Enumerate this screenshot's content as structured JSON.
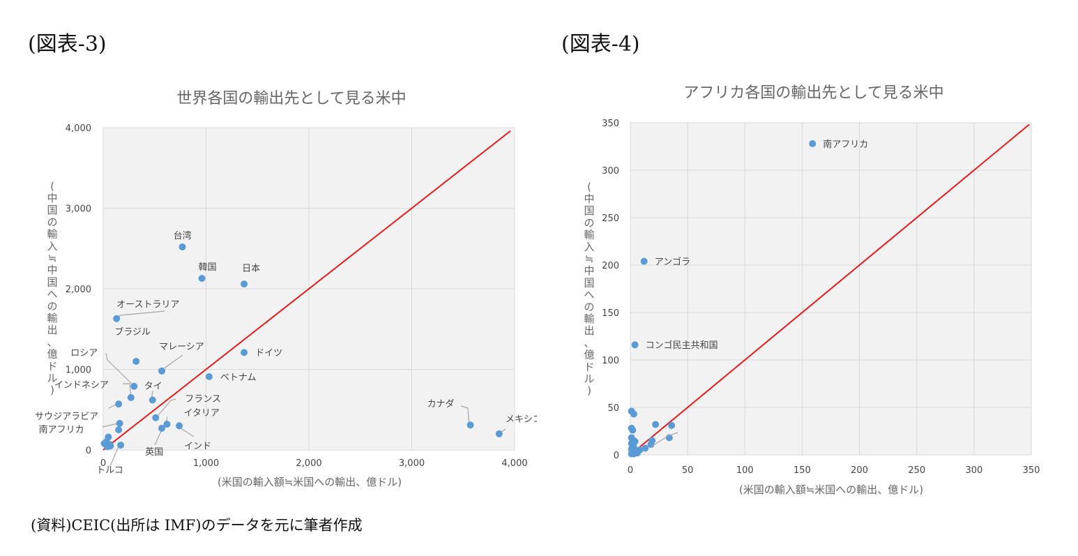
{
  "fig3_label": "(図表-3)",
  "fig4_label": "(図表-4)",
  "source": "(資料)CEIC(出所は IMF)のデータを元に筆者作成",
  "chart_data": [
    {
      "type": "scatter",
      "title": "世界各国の輸出先として見る米中",
      "xlabel": "(米国の輸入額≒米国への輸出、億ドル)",
      "ylabel": "(中国の輸入≒中国への輸出、億ドル)",
      "xlim": [
        0,
        4000
      ],
      "ylim": [
        0,
        4000
      ],
      "xticks": [
        0,
        1000,
        2000,
        3000,
        4000
      ],
      "yticks": [
        0,
        1000,
        2000,
        3000,
        4000
      ],
      "xtick_labels": [
        "0",
        "1,000",
        "2,000",
        "3,000",
        "4,000"
      ],
      "ytick_labels": [
        "0",
        "1,000",
        "2,000",
        "3,000",
        "4,000"
      ],
      "grid": true,
      "reference_line": "y=x",
      "point_color": "#5b9bd5",
      "line_color": "#e41a1c",
      "points": [
        {
          "label": "台湾",
          "x": 770,
          "y": 2520
        },
        {
          "label": "韓国",
          "x": 960,
          "y": 2130
        },
        {
          "label": "日本",
          "x": 1370,
          "y": 2060
        },
        {
          "label": "オーストラリア",
          "x": 130,
          "y": 1630
        },
        {
          "label": "ドイツ",
          "x": 1370,
          "y": 1210
        },
        {
          "label": "ブラジル",
          "x": 320,
          "y": 1100
        },
        {
          "label": "マレーシア",
          "x": 570,
          "y": 980
        },
        {
          "label": "ベトナム",
          "x": 1030,
          "y": 910
        },
        {
          "label": "ロシア",
          "x": 300,
          "y": 790
        },
        {
          "label": "インドネシア",
          "x": 270,
          "y": 650
        },
        {
          "label": "タイ",
          "x": 480,
          "y": 620
        },
        {
          "label": "サウジアラビア",
          "x": 150,
          "y": 570
        },
        {
          "label": "フランス",
          "x": 510,
          "y": 400
        },
        {
          "label": "イタリア",
          "x": 620,
          "y": 320
        },
        {
          "label": "メキシコ",
          "x": 3850,
          "y": 200
        },
        {
          "label": "カナダ",
          "x": 3570,
          "y": 310
        },
        {
          "label": "南アフリカ",
          "x": 160,
          "y": 330
        },
        {
          "label": "英国",
          "x": 570,
          "y": 270
        },
        {
          "label": "インド",
          "x": 740,
          "y": 300
        },
        {
          "label": "トルコ",
          "x": 170,
          "y": 60
        },
        {
          "label": "",
          "x": 150,
          "y": 250
        },
        {
          "label": "",
          "x": 50,
          "y": 160
        },
        {
          "label": "",
          "x": 30,
          "y": 100
        },
        {
          "label": "",
          "x": 60,
          "y": 70
        },
        {
          "label": "",
          "x": 10,
          "y": 80
        },
        {
          "label": "",
          "x": 40,
          "y": 40
        },
        {
          "label": "",
          "x": 70,
          "y": 50
        }
      ]
    },
    {
      "type": "scatter",
      "title": "アフリカ各国の輸出先として見る米中",
      "xlabel": "(米国の輸入額≒米国への輸出、億ドル)",
      "ylabel": "(中国の輸入≒中国への輸出、億ドル)",
      "xlim": [
        0,
        350
      ],
      "ylim": [
        0,
        350
      ],
      "xticks": [
        0,
        50,
        100,
        150,
        200,
        250,
        300,
        350
      ],
      "yticks": [
        0,
        50,
        100,
        150,
        200,
        250,
        300,
        350
      ],
      "xtick_labels": [
        "0",
        "50",
        "100",
        "150",
        "200",
        "250",
        "300",
        "350"
      ],
      "ytick_labels": [
        "0",
        "50",
        "100",
        "150",
        "200",
        "250",
        "300",
        "350"
      ],
      "grid": true,
      "reference_line": "y=x",
      "point_color": "#5b9bd5",
      "line_color": "#e41a1c",
      "points": [
        {
          "label": "南アフリカ",
          "x": 159,
          "y": 328
        },
        {
          "label": "アンゴラ",
          "x": 12,
          "y": 204
        },
        {
          "label": "コンゴ民主共和国",
          "x": 4,
          "y": 116
        },
        {
          "label": "",
          "x": 1,
          "y": 46
        },
        {
          "label": "",
          "x": 3,
          "y": 43
        },
        {
          "label": "",
          "x": 1,
          "y": 28
        },
        {
          "label": "",
          "x": 2,
          "y": 26
        },
        {
          "label": "",
          "x": 22,
          "y": 32
        },
        {
          "label": "",
          "x": 36,
          "y": 31
        },
        {
          "label": "",
          "x": 34,
          "y": 18
        },
        {
          "label": "",
          "x": 1,
          "y": 18
        },
        {
          "label": "",
          "x": 3,
          "y": 15
        },
        {
          "label": "",
          "x": 19,
          "y": 15
        },
        {
          "label": "",
          "x": 18,
          "y": 11
        },
        {
          "label": "",
          "x": 13,
          "y": 7
        },
        {
          "label": "",
          "x": 8,
          "y": 5
        },
        {
          "label": "",
          "x": 5,
          "y": 3
        },
        {
          "label": "",
          "x": 2,
          "y": 10
        },
        {
          "label": "",
          "x": 3,
          "y": 8
        },
        {
          "label": "",
          "x": 1,
          "y": 6
        },
        {
          "label": "",
          "x": 4,
          "y": 4
        },
        {
          "label": "",
          "x": 2,
          "y": 2
        },
        {
          "label": "",
          "x": 3,
          "y": 1
        },
        {
          "label": "",
          "x": 1,
          "y": 1
        },
        {
          "label": "",
          "x": 6,
          "y": 2
        },
        {
          "label": "",
          "x": 1,
          "y": 12
        },
        {
          "label": "",
          "x": 4,
          "y": 14
        }
      ]
    }
  ]
}
